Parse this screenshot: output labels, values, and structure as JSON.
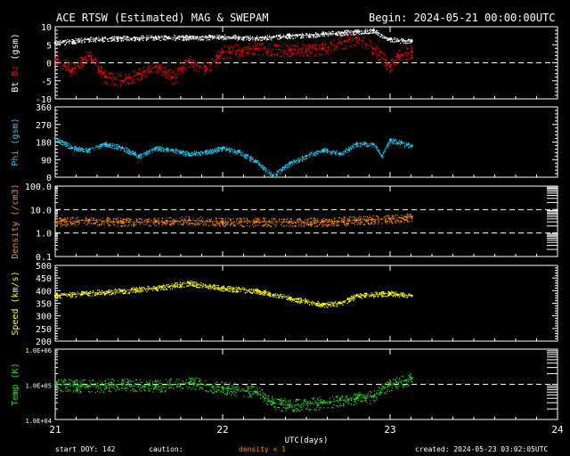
{
  "header": {
    "title": "ACE RTSW (Estimated) MAG & SWEPAM",
    "begin": "Begin: 2024-05-21 00:00:00UTC"
  },
  "footer": {
    "start_doy": "start DOY: 142",
    "caution": "caution:",
    "density_note": "density < 1",
    "created": "created: 2024-05-23 03:02:05UTC"
  },
  "colors": {
    "background": "#000000",
    "axes": "#ffffff",
    "bt": "#ffffff",
    "bz": "#ff0000",
    "phi": "#1ec8f0",
    "density": "#ff8c00",
    "speed": "#ffff00",
    "temp": "#22dd22",
    "caution": "#ff8c00"
  },
  "chart_data": {
    "type": "scatter",
    "x_axis": {
      "label": "UTC(days)",
      "range": [
        21,
        24
      ],
      "ticks": [
        "21",
        "22",
        "23",
        "24"
      ],
      "data_end": 23.13
    },
    "panels": [
      {
        "id": "mag",
        "ylabel_parts": [
          {
            "text": "Bt",
            "color": "#ffffff"
          },
          {
            "text": " ",
            "color": "#ffffff"
          },
          {
            "text": "Bz",
            "color": "#ff0000"
          },
          {
            "text": "  (gsm)",
            "color": "#ffffff"
          }
        ],
        "scale": "linear",
        "ylim": [
          -10,
          10
        ],
        "ticks": [
          "-10",
          "-5",
          "0",
          "5",
          "10"
        ],
        "reference_lines": [
          0
        ],
        "series": [
          {
            "name": "Bt",
            "color": "#ffffff",
            "x": [
              21.0,
              21.2,
              21.4,
              21.6,
              21.8,
              22.0,
              22.2,
              22.4,
              22.6,
              22.8,
              22.9,
              23.0,
              23.13
            ],
            "y": [
              5.5,
              6.5,
              6.8,
              7.0,
              7.0,
              7.2,
              6.8,
              7.5,
              8.0,
              8.6,
              9.0,
              6.5,
              6.0
            ]
          },
          {
            "name": "Bz",
            "color": "#ff0000",
            "x": [
              21.0,
              21.1,
              21.2,
              21.3,
              21.4,
              21.5,
              21.6,
              21.7,
              21.8,
              21.9,
              22.0,
              22.2,
              22.4,
              22.6,
              22.8,
              22.9,
              23.0,
              23.05,
              23.13
            ],
            "y": [
              1.0,
              -2.0,
              2.0,
              -4.0,
              -5.0,
              -3.0,
              -1.0,
              -4.0,
              0.5,
              -2.0,
              3.0,
              4.0,
              3.5,
              4.0,
              7.0,
              4.0,
              -1.0,
              2.0,
              3.0
            ]
          }
        ]
      },
      {
        "id": "phi",
        "ylabel": "Phi (gsm)",
        "scale": "linear",
        "ylim": [
          0,
          360
        ],
        "ticks": [
          "0",
          "90",
          "180",
          "270",
          "360"
        ],
        "series": [
          {
            "name": "Phi",
            "color": "#1ec8f0",
            "x": [
              21.0,
              21.1,
              21.2,
              21.3,
              21.4,
              21.5,
              21.6,
              21.7,
              21.8,
              21.9,
              22.0,
              22.1,
              22.2,
              22.3,
              22.4,
              22.5,
              22.6,
              22.7,
              22.8,
              22.9,
              22.95,
              23.0,
              23.13
            ],
            "y": [
              200,
              150,
              140,
              170,
              150,
              110,
              150,
              140,
              120,
              130,
              150,
              130,
              80,
              10,
              70,
              110,
              140,
              120,
              170,
              170,
              110,
              190,
              160
            ]
          }
        ]
      },
      {
        "id": "density",
        "ylabel": "Density (/cm3)",
        "scale": "log",
        "ylim": [
          0.1,
          100
        ],
        "ticks": [
          "0.1",
          "1.0",
          "10.0",
          "100.0"
        ],
        "reference_lines": [
          1,
          10
        ],
        "series": [
          {
            "name": "Density",
            "color": "#ff8c00",
            "x": [
              21.0,
              21.2,
              21.4,
              21.6,
              21.8,
              22.0,
              22.2,
              22.4,
              22.6,
              22.8,
              23.0,
              23.13
            ],
            "y": [
              3.0,
              3.5,
              3.0,
              3.0,
              3.5,
              3.0,
              3.0,
              3.0,
              3.0,
              3.5,
              4.0,
              5.0
            ]
          }
        ]
      },
      {
        "id": "speed",
        "ylabel": "Speed (km/s)",
        "scale": "linear",
        "ylim": [
          200,
          500
        ],
        "ticks": [
          "200",
          "250",
          "300",
          "350",
          "400",
          "450",
          "500"
        ],
        "series": [
          {
            "name": "Speed",
            "color": "#ffff00",
            "x": [
              21.0,
              21.2,
              21.4,
              21.6,
              21.8,
              22.0,
              22.2,
              22.4,
              22.6,
              22.7,
              22.8,
              23.0,
              23.13
            ],
            "y": [
              380,
              390,
              400,
              410,
              430,
              410,
              400,
              370,
              345,
              350,
              380,
              390,
              380
            ]
          }
        ]
      },
      {
        "id": "temp",
        "ylabel": "Temp (K)",
        "scale": "log",
        "ylim": [
          10000,
          1000000
        ],
        "ticks": [
          "1.0E+04",
          "1.0E+05",
          "1.0E+06"
        ],
        "reference_lines": [
          100000
        ],
        "series": [
          {
            "name": "Temp",
            "color": "#22dd22",
            "x": [
              21.0,
              21.2,
              21.4,
              21.6,
              21.8,
              22.0,
              22.2,
              22.3,
              22.4,
              22.6,
              22.8,
              22.9,
              23.0,
              23.13
            ],
            "y": [
              100000,
              90000,
              100000,
              90000,
              110000,
              80000,
              60000,
              30000,
              25000,
              30000,
              40000,
              45000,
              100000,
              150000
            ]
          }
        ]
      }
    ]
  }
}
